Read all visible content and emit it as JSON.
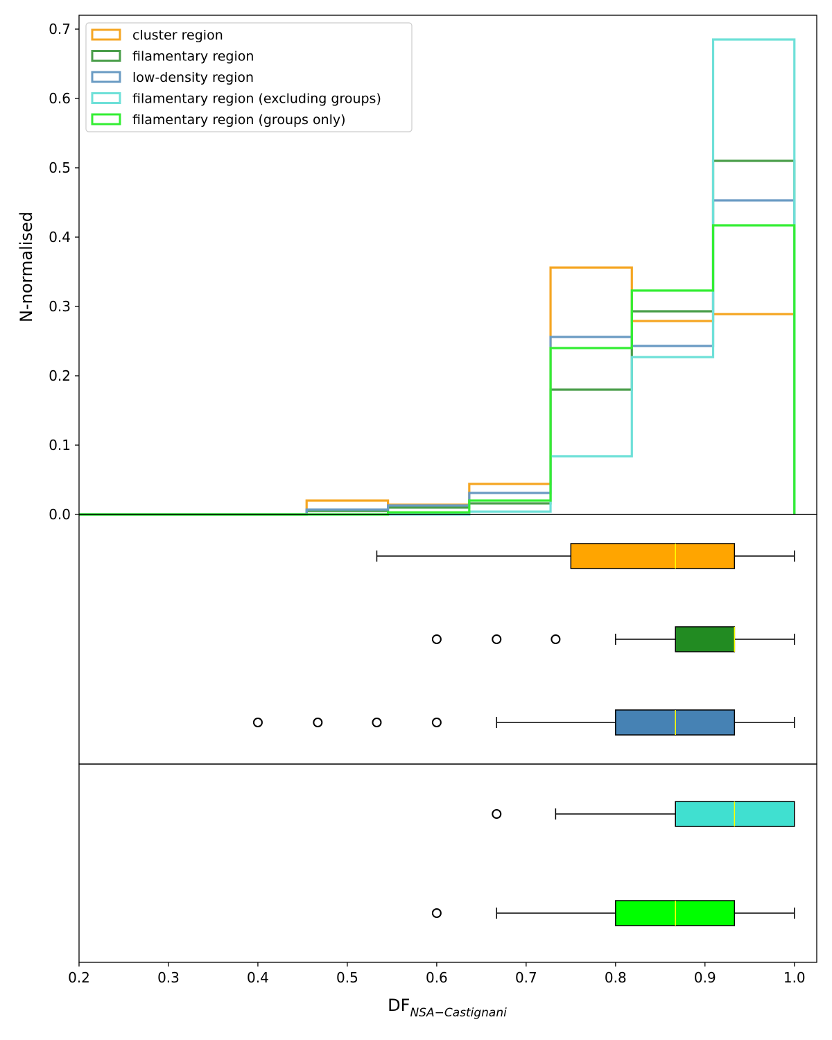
{
  "chart_data": [
    {
      "type": "histogram-step",
      "title": "",
      "ylabel": "N-normalised",
      "xlim": [
        0.2,
        1.025
      ],
      "ylim": [
        0,
        0.72
      ],
      "yticks": [
        "0.0",
        "0.1",
        "0.2",
        "0.3",
        "0.4",
        "0.5",
        "0.6",
        "0.7"
      ],
      "bin_edges": [
        0.2,
        0.4545,
        0.5455,
        0.6364,
        0.7273,
        0.8182,
        0.9091,
        1.0
      ],
      "legend_position": "top-left",
      "series": [
        {
          "name": "cluster region",
          "color": "#f5a623",
          "values": [
            0,
            0.02,
            0.014,
            0.044,
            0.356,
            0.279,
            0.289
          ]
        },
        {
          "name": "filamentary region",
          "color": "#4a9e4a",
          "values": [
            0,
            0.005,
            0.01,
            0.016,
            0.18,
            0.293,
            0.51
          ]
        },
        {
          "name": "low-density region",
          "color": "#6a9bc3",
          "values": [
            0,
            0.007,
            0.013,
            0.031,
            0.256,
            0.243,
            0.453
          ]
        },
        {
          "name": "filamentary region (excluding groups)",
          "color": "#6ee0d8",
          "values": [
            0,
            0.0,
            0.0,
            0.004,
            0.084,
            0.227,
            0.685
          ]
        },
        {
          "name": "filamentary region (groups only)",
          "color": "#33ee33",
          "values": [
            0,
            0.0,
            0.003,
            0.02,
            0.24,
            0.323,
            0.417
          ]
        }
      ]
    },
    {
      "type": "boxplot",
      "orientation": "horizontal",
      "boxes": [
        {
          "name": "cluster region",
          "color": "#ffa500",
          "whisker_low": 0.533,
          "q1": 0.75,
          "median": 0.867,
          "q3": 0.933,
          "whisker_high": 1.0,
          "outliers": []
        },
        {
          "name": "filamentary region",
          "color": "#228b22",
          "whisker_low": 0.8,
          "q1": 0.867,
          "median": 0.933,
          "q3": 0.933,
          "whisker_high": 1.0,
          "outliers": [
            0.6,
            0.667,
            0.733
          ]
        },
        {
          "name": "low-density region",
          "color": "#4682b4",
          "whisker_low": 0.667,
          "q1": 0.8,
          "median": 0.867,
          "q3": 0.933,
          "whisker_high": 1.0,
          "outliers": [
            0.4,
            0.467,
            0.533,
            0.6
          ]
        }
      ]
    },
    {
      "type": "boxplot",
      "orientation": "horizontal",
      "xlabel_main": "DF",
      "xlabel_sub": "NSA−Castignani",
      "xlim": [
        0.2,
        1.025
      ],
      "xticks": [
        "0.2",
        "0.3",
        "0.4",
        "0.5",
        "0.6",
        "0.7",
        "0.8",
        "0.9",
        "1.0"
      ],
      "boxes": [
        {
          "name": "filamentary region (excluding groups)",
          "color": "#40e0d0",
          "whisker_low": 0.733,
          "q1": 0.867,
          "median": 0.933,
          "q3": 1.0,
          "whisker_high": 1.0,
          "outliers": [
            0.667
          ]
        },
        {
          "name": "filamentary region (groups only)",
          "color": "#00ff00",
          "whisker_low": 0.667,
          "q1": 0.8,
          "median": 0.867,
          "q3": 0.933,
          "whisker_high": 1.0,
          "outliers": [
            0.6
          ]
        }
      ]
    }
  ]
}
